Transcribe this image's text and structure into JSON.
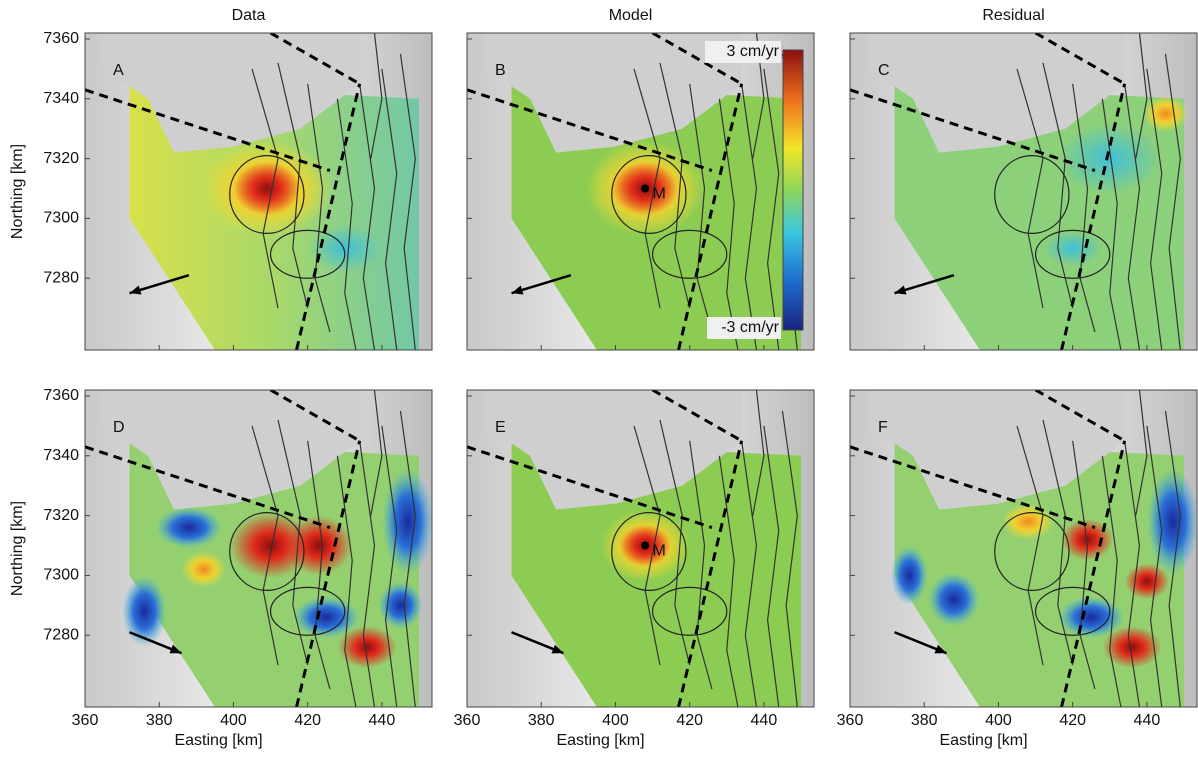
{
  "columns": [
    "Data",
    "Model",
    "Residual"
  ],
  "axes": {
    "x_label": "Easting [km]",
    "y_label": "Northing [km]",
    "xticks": [
      360,
      380,
      400,
      420,
      440
    ],
    "yticks": [
      7280,
      7300,
      7320,
      7340,
      7360
    ]
  },
  "panels": [
    {
      "label": "A"
    },
    {
      "label": "B"
    },
    {
      "label": "C"
    },
    {
      "label": "D"
    },
    {
      "label": "E"
    },
    {
      "label": "F"
    }
  ],
  "colorbar": {
    "max_label": "3 cm/yr",
    "min_label": "-3 cm/yr"
  },
  "marker_label": "M"
}
